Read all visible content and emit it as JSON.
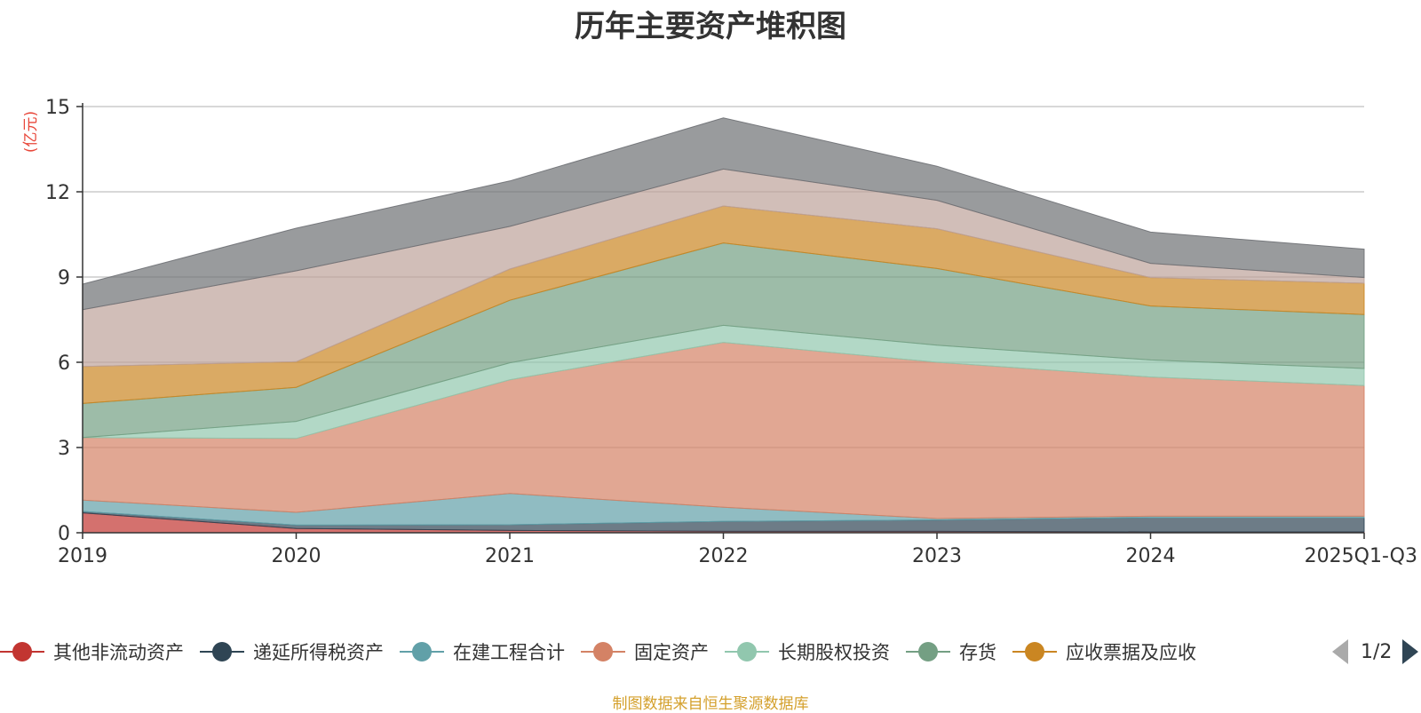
{
  "chart_data": {
    "type": "area",
    "stacked": true,
    "title": "历年主要资产堆积图",
    "ylabel": "(亿元)",
    "ylim": [
      0,
      15
    ],
    "yticks": [
      0,
      3,
      6,
      9,
      12,
      15
    ],
    "grid": true,
    "x": [
      "2019",
      "2020",
      "2021",
      "2022",
      "2023",
      "2024",
      "2025Q1-Q3"
    ],
    "series": [
      {
        "name": "其他非流动资产",
        "color": "#c23531",
        "values": [
          0.7,
          0.15,
          0.08,
          0.05,
          0.05,
          0.03,
          0.03
        ]
      },
      {
        "name": "递延所得税资产",
        "color": "#2f4554",
        "values": [
          0.05,
          0.12,
          0.2,
          0.35,
          0.4,
          0.5,
          0.5
        ]
      },
      {
        "name": "在建工程合计",
        "color": "#61a0a8",
        "values": [
          0.4,
          0.45,
          1.1,
          0.5,
          0.05,
          0.05,
          0.05
        ]
      },
      {
        "name": "固定资产",
        "color": "#d48265",
        "values": [
          2.2,
          2.6,
          4.0,
          5.8,
          5.5,
          4.9,
          4.6
        ]
      },
      {
        "name": "长期股权投资",
        "color": "#91c7ae",
        "values": [
          0.0,
          0.6,
          0.6,
          0.6,
          0.6,
          0.6,
          0.6
        ]
      },
      {
        "name": "存货",
        "color": "#749f83",
        "values": [
          1.2,
          1.2,
          2.2,
          2.9,
          2.7,
          1.9,
          1.9
        ]
      },
      {
        "name": "应收票据及应收",
        "color": "#ca8622",
        "values": [
          1.3,
          0.9,
          1.1,
          1.3,
          1.4,
          1.0,
          1.1
        ]
      },
      {
        "name": "",
        "color": "#bda29a",
        "values": [
          2.0,
          3.2,
          1.5,
          1.3,
          1.0,
          0.5,
          0.2
        ]
      },
      {
        "name": "",
        "color": "#6e7074",
        "values": [
          0.9,
          1.5,
          1.6,
          1.8,
          1.2,
          1.1,
          1.0
        ]
      }
    ]
  },
  "legend": {
    "page": "1/2"
  },
  "footer": {
    "source": "制图数据来自恒生聚源数据库"
  }
}
